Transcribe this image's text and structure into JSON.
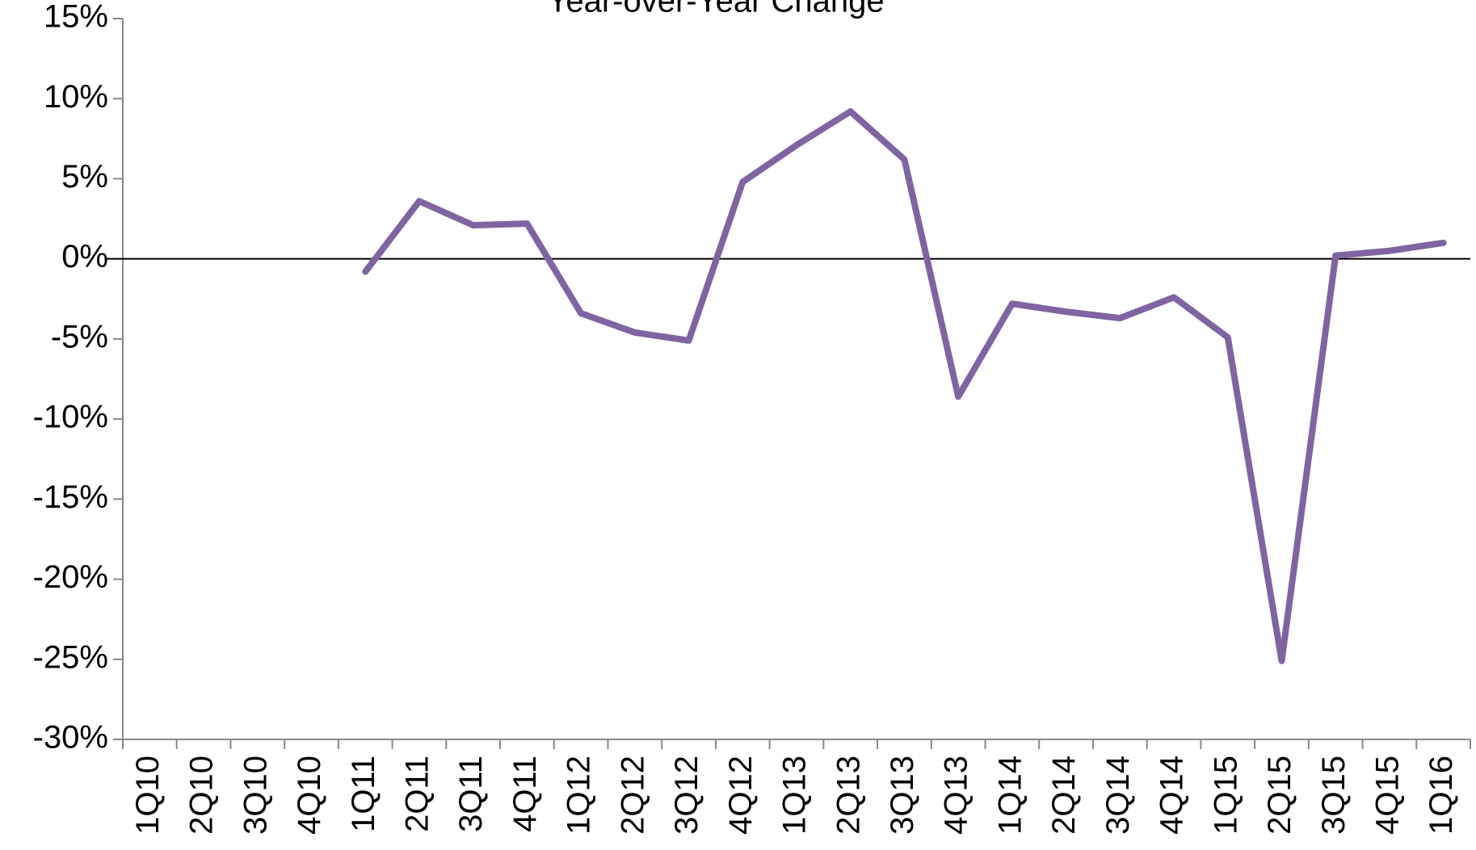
{
  "chart_data": {
    "type": "line",
    "title": "Year-over-Year Change",
    "categories": [
      "1Q10",
      "2Q10",
      "3Q10",
      "4Q10",
      "1Q11",
      "2Q11",
      "3Q11",
      "4Q11",
      "1Q12",
      "2Q12",
      "3Q12",
      "4Q12",
      "1Q13",
      "2Q13",
      "3Q13",
      "4Q13",
      "1Q14",
      "2Q14",
      "3Q14",
      "4Q14",
      "1Q15",
      "2Q15",
      "3Q15",
      "4Q15",
      "1Q16"
    ],
    "series": [
      {
        "name": "Year-over-Year Change",
        "color": "#8064a2",
        "values": [
          null,
          null,
          null,
          null,
          -0.8,
          3.6,
          2.1,
          2.2,
          -3.4,
          -4.6,
          -5.1,
          4.8,
          7.1,
          9.2,
          6.2,
          -8.6,
          -2.8,
          -3.3,
          -3.7,
          -2.4,
          -4.9,
          -25.1,
          0.2,
          0.5,
          1.0
        ]
      }
    ],
    "ylim": [
      -30,
      15
    ],
    "yticks": [
      {
        "value": -30,
        "label": "-30%"
      },
      {
        "value": -25,
        "label": "-25%"
      },
      {
        "value": -20,
        "label": "-20%"
      },
      {
        "value": -15,
        "label": "-15%"
      },
      {
        "value": -10,
        "label": "-10%"
      },
      {
        "value": -5,
        "label": "-5%"
      },
      {
        "value": 0,
        "label": "0%"
      },
      {
        "value": 5,
        "label": "5%"
      },
      {
        "value": 10,
        "label": "10%"
      },
      {
        "value": 15,
        "label": "15%"
      }
    ],
    "grid": false
  }
}
